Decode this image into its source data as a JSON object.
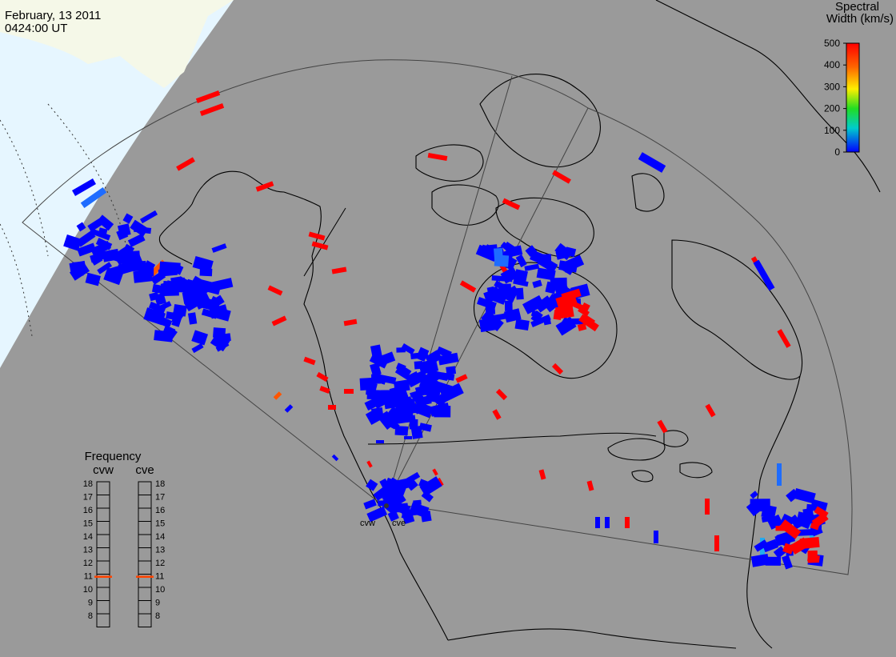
{
  "header": {
    "date": "February, 13 2011",
    "time": "0424:00 UT"
  },
  "colorbar": {
    "title_line1": "Spectral",
    "title_line2": "Width (km/s)",
    "ticks": [
      "500",
      "400",
      "300",
      "200",
      "100",
      "0"
    ],
    "colors": [
      "#ff0000",
      "#ff7700",
      "#ffee00",
      "#33dd33",
      "#00cccc",
      "#0000ff"
    ]
  },
  "radars": {
    "west_label": "cvw",
    "east_label": "cve"
  },
  "frequency_panel": {
    "title": "Frequency",
    "col_west": "cvw",
    "col_east": "cve",
    "levels": [
      "18",
      "17",
      "16",
      "15",
      "14",
      "13",
      "12",
      "11",
      "10",
      "9",
      "8"
    ],
    "cvw_marker": 10.8,
    "cve_marker": 10.8,
    "marker_color": "#ff4400"
  },
  "colors": {
    "background": "#9a9a9a",
    "night_terminator": "#e6f6ff",
    "ice": "#f5f8e8",
    "coastline": "#000000",
    "low_width": "#0000ff",
    "high_width": "#ff0000"
  }
}
